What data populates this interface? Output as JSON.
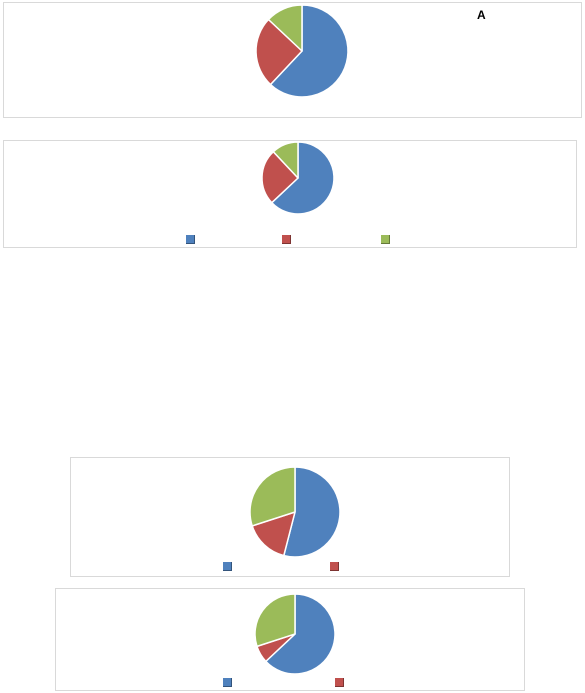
{
  "colors": {
    "blue": "#4f81bd",
    "red": "#c0504d",
    "green": "#9bbb59",
    "border": "#d9d9d9"
  },
  "panel_label": "A",
  "chart_data": [
    {
      "type": "pie",
      "slice_colors": [
        "#4f81bd",
        "#c0504d",
        "#9bbb59"
      ],
      "values": [
        62,
        25,
        13
      ],
      "legend": false
    },
    {
      "type": "pie",
      "slice_colors": [
        "#4f81bd",
        "#c0504d",
        "#9bbb59"
      ],
      "values": [
        63,
        25,
        12
      ],
      "legend": true,
      "legend_swatches": [
        "#4f81bd",
        "#c0504d",
        "#9bbb59"
      ]
    },
    {
      "type": "pie",
      "slice_colors": [
        "#4f81bd",
        "#c0504d",
        "#9bbb59"
      ],
      "values": [
        54,
        16,
        30
      ],
      "legend": true,
      "legend_swatches": [
        "#4f81bd",
        "#c0504d"
      ]
    },
    {
      "type": "pie",
      "slice_colors": [
        "#4f81bd",
        "#c0504d",
        "#9bbb59"
      ],
      "values": [
        63,
        7,
        30
      ],
      "legend": true,
      "legend_swatches": [
        "#4f81bd",
        "#c0504d"
      ]
    }
  ]
}
